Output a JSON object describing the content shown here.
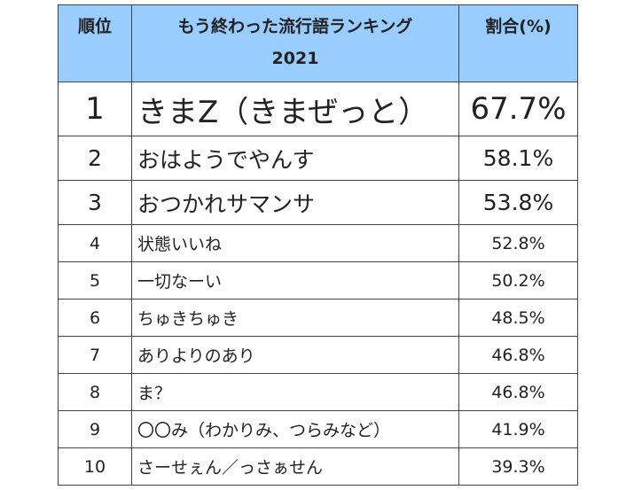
{
  "header": {
    "rank": "順位",
    "title_line1": "もう終わった流行語ランキング",
    "title_line2": "2021",
    "percent": "割合(%)"
  },
  "header_color": "#99ccff",
  "rows": [
    {
      "rank": "1",
      "word": "きまZ（きまぜっと）",
      "percent": "67.7%"
    },
    {
      "rank": "2",
      "word": "おはようでやんす",
      "percent": "58.1%"
    },
    {
      "rank": "3",
      "word": "おつかれサマンサ",
      "percent": "53.8%"
    },
    {
      "rank": "4",
      "word": "状態いいね",
      "percent": "52.8%"
    },
    {
      "rank": "5",
      "word": "一切なーい",
      "percent": "50.2%"
    },
    {
      "rank": "6",
      "word": "ちゅきちゅき",
      "percent": "48.5%"
    },
    {
      "rank": "7",
      "word": "ありよりのあり",
      "percent": "46.8%"
    },
    {
      "rank": "8",
      "word": "ま？",
      "percent": "46.8%"
    },
    {
      "rank": "9",
      "word": "〇〇み（わかりみ、つらみなど）",
      "percent": "41.9%"
    },
    {
      "rank": "10",
      "word": "さーせぇん／っさぁせん",
      "percent": "39.3%"
    }
  ]
}
